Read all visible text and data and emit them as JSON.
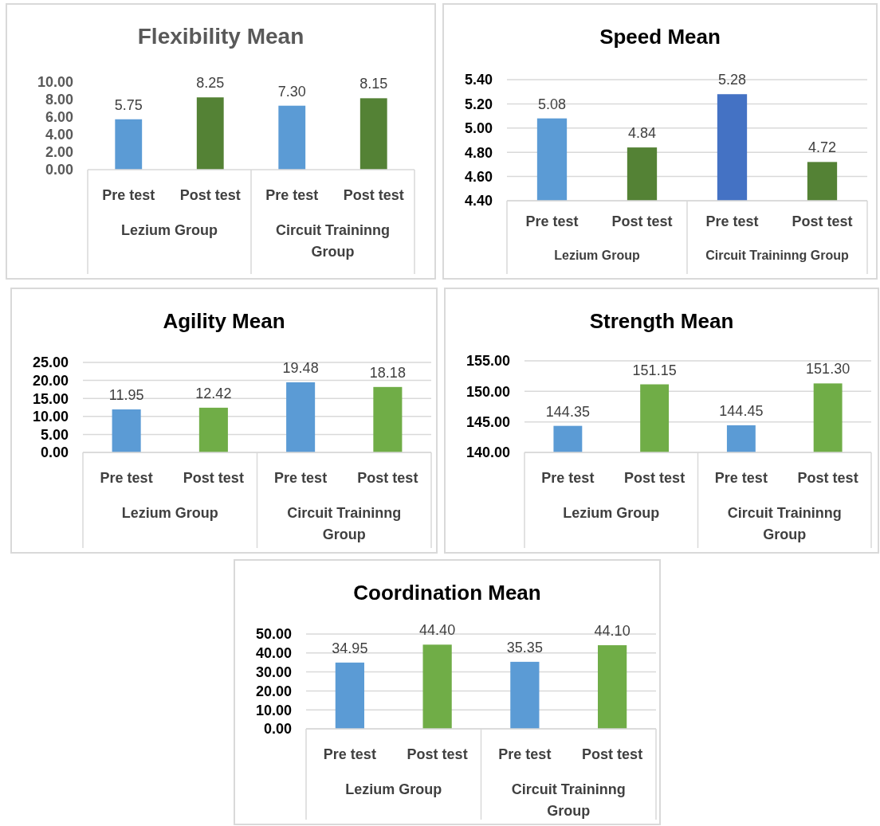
{
  "chart_data": [
    {
      "type": "bar",
      "title": "Flexibility  Mean",
      "categories": [
        "Pre test",
        "Post test",
        "Pre test",
        "Post test"
      ],
      "values": [
        5.75,
        8.25,
        7.3,
        8.15
      ],
      "value_labels": [
        "5.75",
        "8.25",
        "7.30",
        "8.15"
      ],
      "colors": [
        "#5b9bd5",
        "#548235",
        "#5b9bd5",
        "#548235"
      ],
      "ylim": [
        0,
        10
      ],
      "yticks": [
        {
          "value": 0,
          "label": "0.00"
        },
        {
          "value": 2,
          "label": "2.00"
        },
        {
          "value": 4,
          "label": "4.00"
        },
        {
          "value": 6,
          "label": "6.00"
        },
        {
          "value": 8,
          "label": "8.00"
        },
        {
          "value": 10,
          "label": "10.00"
        }
      ],
      "grid": false,
      "annotations": [
        "Lezium Group",
        "Circuit Traininng Group"
      ]
    },
    {
      "type": "bar",
      "title": "Speed Mean",
      "categories": [
        "Pre test",
        "Post test",
        "Pre test",
        "Post test"
      ],
      "values": [
        5.08,
        4.84,
        5.28,
        4.72
      ],
      "value_labels": [
        "5.08",
        "4.84",
        "5.28",
        "4.72"
      ],
      "colors": [
        "#5b9bd5",
        "#548235",
        "#4472c4",
        "#548235"
      ],
      "ylim": [
        4.4,
        5.4
      ],
      "yticks": [
        {
          "value": 4.4,
          "label": "4.40"
        },
        {
          "value": 4.6,
          "label": "4.60"
        },
        {
          "value": 4.8,
          "label": "4.80"
        },
        {
          "value": 5,
          "label": "5.00"
        },
        {
          "value": 5.2,
          "label": "5.20"
        },
        {
          "value": 5.4,
          "label": "5.40"
        }
      ],
      "grid": true,
      "annotations": [
        "Lezium Group",
        "Circuit Traininng Group"
      ]
    },
    {
      "type": "bar",
      "title": "Agility Mean",
      "categories": [
        "Pre test",
        "Post test",
        "Pre test",
        "Post test"
      ],
      "values": [
        11.95,
        12.42,
        19.48,
        18.18
      ],
      "value_labels": [
        "11.95",
        "12.42",
        "19.48",
        "18.18"
      ],
      "colors": [
        "#5b9bd5",
        "#70ad47",
        "#5b9bd5",
        "#70ad47"
      ],
      "ylim": [
        0,
        25
      ],
      "yticks": [
        {
          "value": 0,
          "label": "0.00"
        },
        {
          "value": 5,
          "label": "5.00"
        },
        {
          "value": 10,
          "label": "10.00"
        },
        {
          "value": 15,
          "label": "15.00"
        },
        {
          "value": 20,
          "label": "20.00"
        },
        {
          "value": 25,
          "label": "25.00"
        }
      ],
      "grid": true,
      "annotations": [
        "Lezium Group",
        "Circuit Traininng Group"
      ]
    },
    {
      "type": "bar",
      "title": "Strength Mean",
      "categories": [
        "Pre test",
        "Post test",
        "Pre test",
        "Post test"
      ],
      "values": [
        144.35,
        151.15,
        144.45,
        151.3
      ],
      "value_labels": [
        "144.35",
        "151.15",
        "144.45",
        "151.30"
      ],
      "colors": [
        "#5b9bd5",
        "#70ad47",
        "#5b9bd5",
        "#70ad47"
      ],
      "ylim": [
        140,
        155
      ],
      "yticks": [
        {
          "value": 140,
          "label": "140.00"
        },
        {
          "value": 145,
          "label": "145.00"
        },
        {
          "value": 150,
          "label": "150.00"
        },
        {
          "value": 155,
          "label": "155.00"
        }
      ],
      "grid": true,
      "annotations": [
        "Lezium Group",
        "Circuit Traininng Group"
      ]
    },
    {
      "type": "bar",
      "title": "Coordination Mean",
      "categories": [
        "Pre test",
        "Post test",
        "Pre test",
        "Post test"
      ],
      "values": [
        34.95,
        44.4,
        35.35,
        44.1
      ],
      "value_labels": [
        "34.95",
        "44.40",
        "35.35",
        "44.10"
      ],
      "colors": [
        "#5b9bd5",
        "#70ad47",
        "#5b9bd5",
        "#70ad47"
      ],
      "ylim": [
        0,
        50
      ],
      "yticks": [
        {
          "value": 0,
          "label": "0.00"
        },
        {
          "value": 10,
          "label": "10.00"
        },
        {
          "value": 20,
          "label": "20.00"
        },
        {
          "value": 30,
          "label": "30.00"
        },
        {
          "value": 40,
          "label": "40.00"
        },
        {
          "value": 50,
          "label": "50.00"
        }
      ],
      "grid": true,
      "annotations": [
        "Lezium Group",
        "Circuit Traininng Group"
      ]
    }
  ]
}
